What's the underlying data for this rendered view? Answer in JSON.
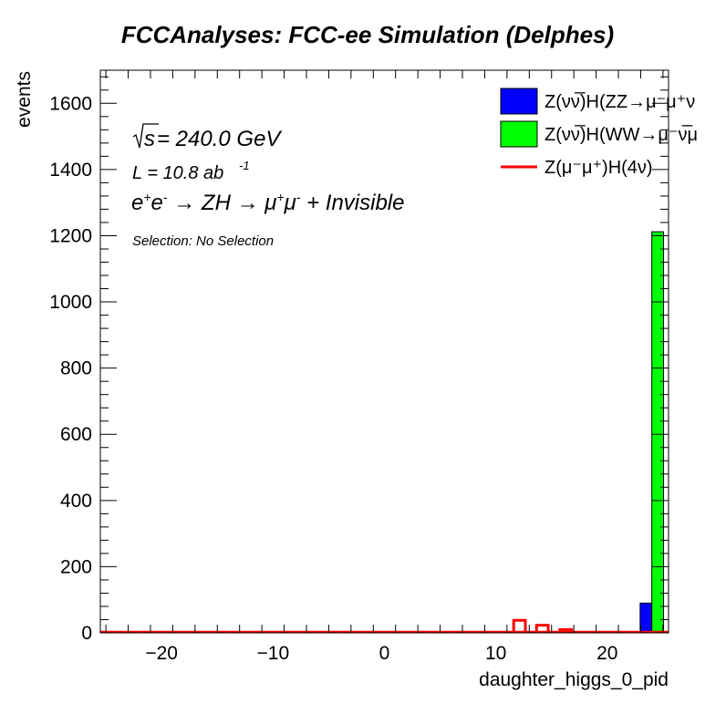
{
  "chart_data": {
    "type": "bar",
    "title": "FCCAnalyses: FCC-ee Simulation (Delphes)",
    "xlabel": "daughter_higgs_0_pid",
    "ylabel": "events",
    "xlim": [
      -25.5,
      25.5
    ],
    "ylim": [
      0,
      1700
    ],
    "x_ticks": [
      -20,
      -10,
      0,
      10,
      20
    ],
    "x_tick_labels": [
      "−20",
      "−10",
      "0",
      "10",
      "20"
    ],
    "y_ticks": [
      0,
      200,
      400,
      600,
      800,
      1000,
      1200,
      1400,
      1600
    ],
    "y_tick_labels": [
      "0",
      "200",
      "400",
      "600",
      "800",
      "1000",
      "1200",
      "1400",
      "1600"
    ],
    "grid": false,
    "legend_position": "top-right",
    "stacked": true,
    "series": [
      {
        "name": "Z(νν̅)H(ZZ→μ⁻μ⁺νν̅)",
        "legend_label": "Z(νν̅)H(ZZ→μ⁻μ⁺ν",
        "style": "filled",
        "color": "#0000ff",
        "bins": [
          {
            "x0": 22.95,
            "x1": 24.0,
            "value": 90
          }
        ]
      },
      {
        "name": "Z(νν̅)H(WW→μ⁻ν̅μ⁺ν)",
        "legend_label": "Z(νν̅)H(WW→μ⁻ν̅μ",
        "style": "filled",
        "color": "#00ff00",
        "bins": [
          {
            "x0": 24.0,
            "x1": 25.05,
            "value": 1212
          }
        ]
      },
      {
        "name": "Z(μ⁻μ⁺)H(4ν)",
        "legend_label": "Z(μ⁻μ⁺)H(4ν)",
        "style": "line",
        "color": "#ff0000",
        "bins": [
          {
            "x0": 11.6,
            "x1": 12.65,
            "value": 38
          },
          {
            "x0": 13.65,
            "x1": 14.7,
            "value": 23
          },
          {
            "x0": 15.75,
            "x1": 16.8,
            "value": 10
          }
        ]
      }
    ],
    "annotations": {
      "energy_lhs": "s",
      "energy_rhs": " = 240.0 GeV",
      "lumi_main": "L = 10.8 ab",
      "lumi_exp": "-1",
      "process": {
        "e": "e",
        "plus": "+",
        "e2": "e",
        "minus": "-",
        "arrow1": " → ZH → ",
        "mu1": "μ",
        "mu_plus": "+",
        "mu2": "μ",
        "mu_minus": "-",
        "tail": " + Invisible"
      },
      "selection": "Selection: No Selection"
    }
  }
}
